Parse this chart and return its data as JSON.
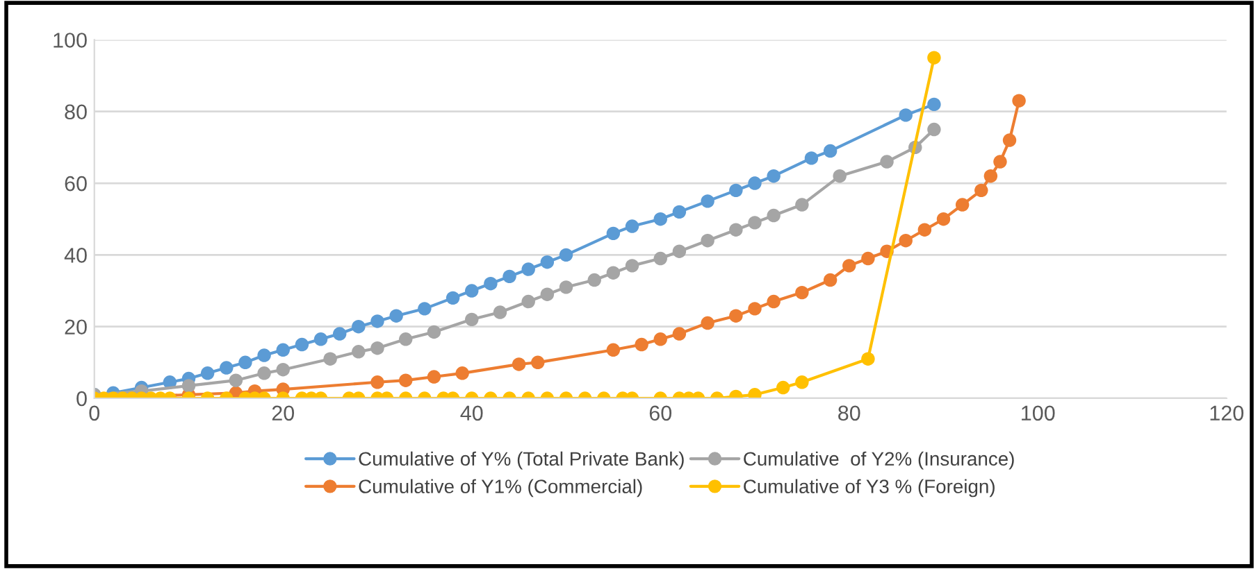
{
  "chart_data": {
    "type": "line",
    "xlim": [
      0,
      120
    ],
    "xticks": [
      0,
      20,
      40,
      60,
      80,
      100,
      120
    ],
    "ylim": [
      0,
      100
    ],
    "yticks": [
      0,
      20,
      40,
      60,
      80,
      100
    ],
    "grid": "y",
    "legend": "bottom",
    "marker": "circle",
    "line_style": "solid",
    "series": [
      {
        "name": "Cumulative of Y% (Total Private Bank)",
        "color": "#5b9bd5",
        "x": [
          0,
          2,
          5,
          8,
          10,
          12,
          14,
          16,
          18,
          20,
          22,
          24,
          26,
          28,
          30,
          32,
          35,
          38,
          40,
          42,
          44,
          46,
          48,
          50,
          55,
          57,
          60,
          62,
          65,
          68,
          70,
          72,
          76,
          78,
          86,
          89
        ],
        "values": [
          1,
          1.5,
          3,
          4.5,
          5.5,
          7,
          8.5,
          10,
          12,
          13.5,
          15,
          16.5,
          18,
          20,
          21.5,
          23,
          25,
          28,
          30,
          32,
          34,
          36,
          38,
          40,
          46,
          48,
          50,
          52,
          55,
          58,
          60,
          62,
          67,
          69,
          79,
          82
        ]
      },
      {
        "name": "Cumulative of Y1% (Commercial)",
        "color": "#ed7d31",
        "x": [
          0,
          5,
          10,
          15,
          17,
          20,
          30,
          33,
          36,
          39,
          45,
          47,
          55,
          58,
          60,
          62,
          65,
          68,
          70,
          72,
          75,
          78,
          80,
          82,
          84,
          86,
          88,
          90,
          92,
          94,
          95,
          96,
          97,
          98
        ],
        "values": [
          0,
          0.5,
          1,
          1.5,
          2,
          2.5,
          4.5,
          5,
          6,
          7,
          9.5,
          10,
          13.5,
          15,
          16.5,
          18,
          21,
          23,
          25,
          27,
          29.5,
          33,
          37,
          39,
          41,
          44,
          47,
          50,
          54,
          58,
          62,
          66,
          72,
          83
        ]
      },
      {
        "name": "Cumulative  of Y2% (Insurance)",
        "color": "#a5a5a5",
        "x": [
          0,
          5,
          10,
          15,
          18,
          20,
          25,
          28,
          30,
          33,
          36,
          40,
          43,
          46,
          48,
          50,
          53,
          55,
          57,
          60,
          62,
          65,
          68,
          70,
          72,
          75,
          79,
          84,
          87,
          89
        ],
        "values": [
          1,
          2,
          3.5,
          5,
          7,
          8,
          11,
          13,
          14,
          16.5,
          18.5,
          22,
          24,
          27,
          29,
          31,
          33,
          35,
          37,
          39,
          41,
          44,
          47,
          49,
          51,
          54,
          62,
          66,
          70,
          75
        ]
      },
      {
        "name": "Cumulative of Y3 % (Foreign)",
        "color": "#ffc000",
        "x": [
          0,
          1,
          2,
          3,
          4,
          5,
          6,
          7,
          8,
          10,
          12,
          14,
          16,
          17,
          18,
          20,
          22,
          23,
          24,
          27,
          28,
          30,
          31,
          33,
          35,
          37,
          38,
          40,
          42,
          44,
          46,
          48,
          50,
          52,
          54,
          56,
          57,
          60,
          62,
          63,
          64,
          66,
          68,
          70,
          73,
          75,
          82,
          89
        ],
        "values": [
          0,
          0,
          0,
          0,
          0,
          0,
          0,
          0,
          0,
          0,
          0,
          0,
          0,
          0,
          0,
          0,
          0,
          0,
          0,
          0,
          0,
          0,
          0,
          0,
          0,
          0,
          0,
          0,
          0,
          0,
          0,
          0,
          0,
          0,
          0,
          0,
          0,
          0,
          0,
          0,
          0,
          0,
          0.5,
          1,
          3,
          4.5,
          11,
          95
        ]
      }
    ]
  }
}
